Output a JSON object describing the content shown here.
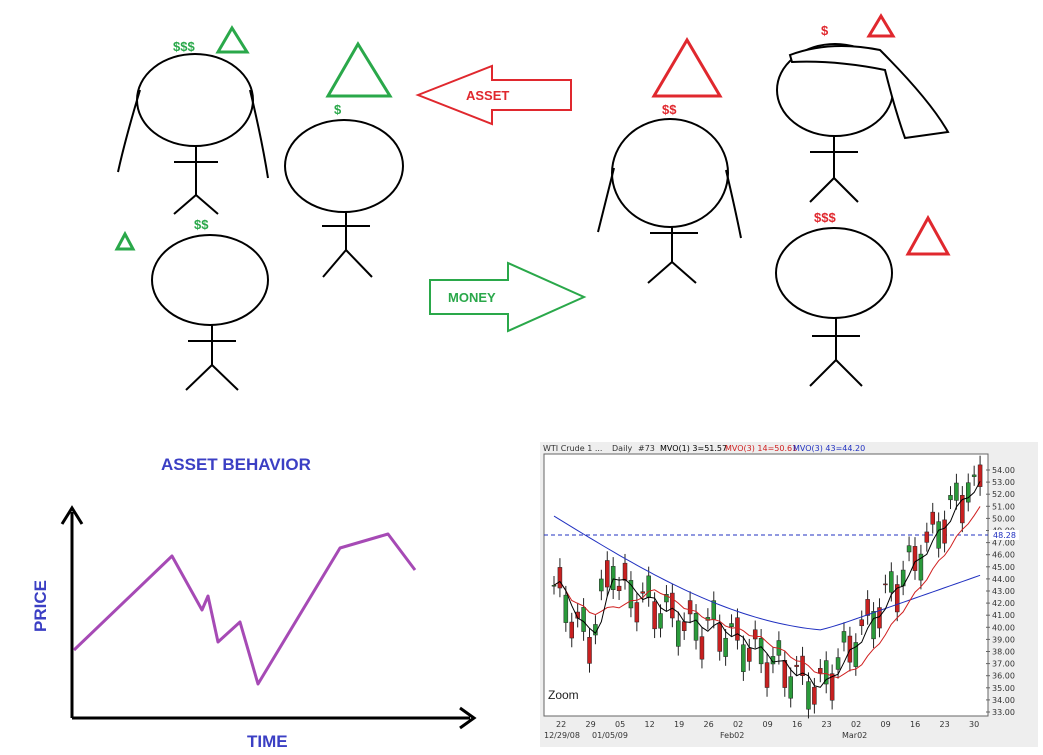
{
  "diagram": {
    "figures": [
      {
        "id": "fig-left-woman",
        "dollars": "$$$",
        "dollar_color": "#2aa84a",
        "triangle": "large-green",
        "hair": true
      },
      {
        "id": "fig-left-man-right",
        "dollars": "$",
        "dollar_color": "#2aa84a",
        "triangle": "large-green",
        "hair": false
      },
      {
        "id": "fig-left-man-bottom",
        "dollars": "$$",
        "dollar_color": "#2aa84a",
        "triangle": "small-green",
        "hair": false
      },
      {
        "id": "fig-right-woman",
        "dollars": "$$",
        "dollar_color": "#e0282e",
        "triangle": "large-red",
        "hair": true
      },
      {
        "id": "fig-right-top",
        "dollars": "$",
        "dollar_color": "#e0282e",
        "triangle": "small-red",
        "hair": "scarf"
      },
      {
        "id": "fig-right-bottom",
        "dollars": "$$$",
        "dollar_color": "#e0282e",
        "triangle": "large-red",
        "hair": false
      }
    ],
    "arrows": {
      "asset": {
        "label": "ASSET",
        "color": "#e0282e",
        "direction": "left"
      },
      "money": {
        "label": "MONEY",
        "color": "#2aa84a",
        "direction": "right"
      }
    }
  },
  "asset_behavior": {
    "title": "ASSET BEHAVIOR",
    "xlabel": "TIME",
    "ylabel": "PRICE",
    "label_color": "#3b3fc4",
    "line_color": "#a64ab5"
  },
  "chart_data": {
    "type": "line",
    "header": {
      "prefix": "WTI Crude 1 ...",
      "period": "Daily",
      "count": "#73",
      "ma1": "MVO(1) 3=51.57",
      "ma2": "MVO(3) 14=50.61",
      "ma3": "MVO(3) 43=44.20"
    },
    "y_ticks": [
      "54.00",
      "53.00",
      "52.00",
      "51.00",
      "50.00",
      "49.00",
      "47.00",
      "46.00",
      "45.00",
      "44.00",
      "43.00",
      "42.00",
      "41.00",
      "40.00",
      "39.00",
      "38.00",
      "37.00",
      "36.00",
      "35.00",
      "34.00",
      "33.00"
    ],
    "current_price": "48.28",
    "x_ticks": [
      "22",
      "29",
      "05",
      "12",
      "19",
      "26",
      "02",
      "09",
      "16",
      "23",
      "02",
      "09",
      "16",
      "23",
      "30"
    ],
    "x_dates": [
      "12/29/08",
      "01/05/09",
      "Feb02",
      "Mar02"
    ],
    "zoom_label": "Zoom",
    "ylim": [
      33,
      54
    ]
  }
}
